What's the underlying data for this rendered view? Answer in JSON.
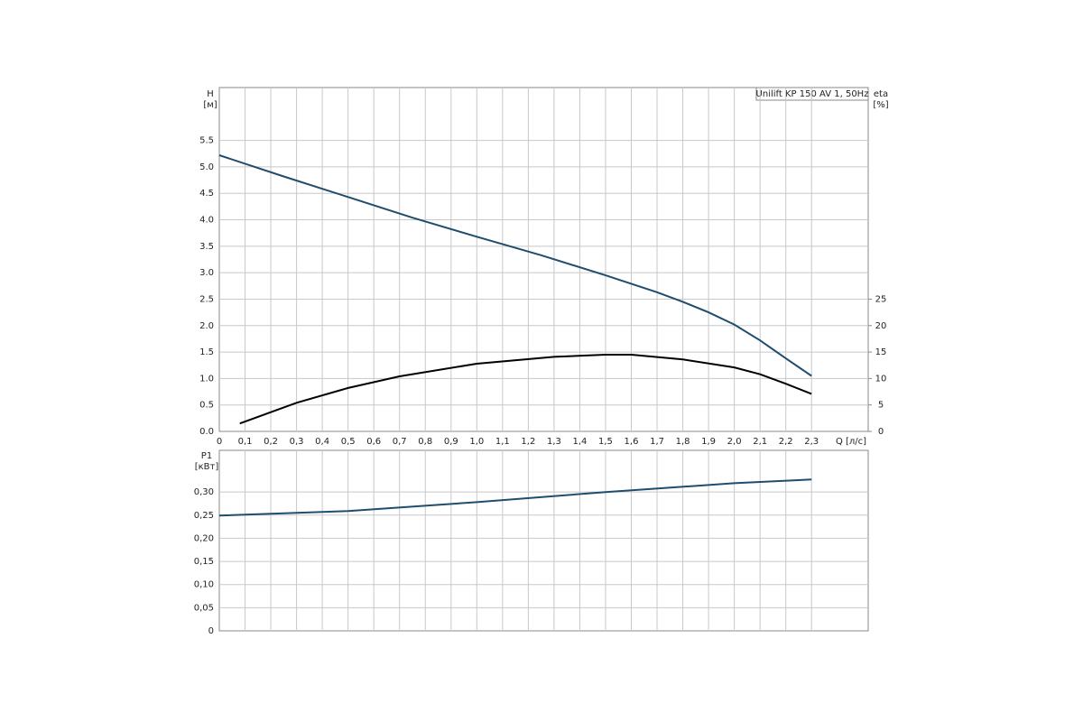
{
  "chart_data": [
    {
      "type": "line",
      "legend_text": "Unilift KP 150 AV 1, 50Hz",
      "y_label": "H",
      "y_unit": "[м]",
      "y2_label": "eta",
      "y2_unit": "[%]",
      "x_label": "Q [л/с]",
      "xlim": [
        0,
        2.52
      ],
      "xticks": [
        {
          "value": 0,
          "label": "0"
        },
        {
          "value": 0.1,
          "label": "0,1"
        },
        {
          "value": 0.2,
          "label": "0,2"
        },
        {
          "value": 0.3,
          "label": "0,3"
        },
        {
          "value": 0.4,
          "label": "0,4"
        },
        {
          "value": 0.5,
          "label": "0,5"
        },
        {
          "value": 0.6,
          "label": "0,6"
        },
        {
          "value": 0.7,
          "label": "0,7"
        },
        {
          "value": 0.8,
          "label": "0,8"
        },
        {
          "value": 0.9,
          "label": "0,9"
        },
        {
          "value": 1.0,
          "label": "1,0"
        },
        {
          "value": 1.1,
          "label": "1,1"
        },
        {
          "value": 1.2,
          "label": "1,2"
        },
        {
          "value": 1.3,
          "label": "1,3"
        },
        {
          "value": 1.4,
          "label": "1,4"
        },
        {
          "value": 1.5,
          "label": "1,5"
        },
        {
          "value": 1.6,
          "label": "1,6"
        },
        {
          "value": 1.7,
          "label": "1,7"
        },
        {
          "value": 1.8,
          "label": "1,8"
        },
        {
          "value": 1.9,
          "label": "1,9"
        },
        {
          "value": 2.0,
          "label": "2,0"
        },
        {
          "value": 2.1,
          "label": "2,1"
        },
        {
          "value": 2.2,
          "label": "2,2"
        },
        {
          "value": 2.3,
          "label": "2,3"
        }
      ],
      "ylim": [
        0,
        6.5
      ],
      "yticks": [
        {
          "value": 0,
          "label": "0.0"
        },
        0.5,
        {
          "value": 1,
          "label": "1.0"
        },
        1.5,
        {
          "value": 2,
          "label": "2.0"
        },
        2.5,
        {
          "value": 3,
          "label": "3.0"
        },
        3.5,
        {
          "value": 4,
          "label": "4.0"
        },
        4.5,
        {
          "value": 5,
          "label": "5.0"
        },
        5.5
      ],
      "y2lim": [
        0,
        65
      ],
      "y2ticks": [
        0,
        5,
        10,
        15,
        20,
        25
      ],
      "grid": true,
      "series": [
        {
          "name": "H",
          "color": "#1f4d6e",
          "x": [
            0,
            0.25,
            0.5,
            0.75,
            1.0,
            1.25,
            1.5,
            1.7,
            1.8,
            1.9,
            2.0,
            2.1,
            2.2,
            2.3
          ],
          "values": [
            5.22,
            4.82,
            4.43,
            4.04,
            3.68,
            3.33,
            2.95,
            2.63,
            2.45,
            2.25,
            2.02,
            1.72,
            1.38,
            1.05
          ]
        },
        {
          "name": "eta",
          "color": "#000000",
          "axis": "y2",
          "x": [
            0.08,
            0.3,
            0.5,
            0.7,
            1.0,
            1.3,
            1.5,
            1.6,
            1.8,
            2.0,
            2.1,
            2.2,
            2.3
          ],
          "values": [
            1.5,
            5.4,
            8.2,
            10.4,
            12.8,
            14.1,
            14.5,
            14.5,
            13.6,
            12.1,
            10.8,
            9.0,
            7.1
          ]
        }
      ]
    },
    {
      "type": "line",
      "y_label": "P1",
      "y_unit": "[кВт]",
      "xlim": [
        0,
        2.52
      ],
      "ylim": [
        0,
        0.39
      ],
      "yticks": [
        0,
        {
          "value": 0.05,
          "label": "0,05"
        },
        {
          "value": 0.1,
          "label": "0,10"
        },
        {
          "value": 0.15,
          "label": "0,15"
        },
        {
          "value": 0.2,
          "label": "0,20"
        },
        {
          "value": 0.25,
          "label": "0,25"
        },
        {
          "value": 0.3,
          "label": "0,30"
        }
      ],
      "grid": true,
      "series": [
        {
          "name": "P1",
          "color": "#1f4d6e",
          "x": [
            0,
            0.5,
            1.0,
            1.5,
            2.0,
            2.3
          ],
          "values": [
            0.249,
            0.259,
            0.278,
            0.3,
            0.319,
            0.327
          ]
        }
      ]
    }
  ]
}
